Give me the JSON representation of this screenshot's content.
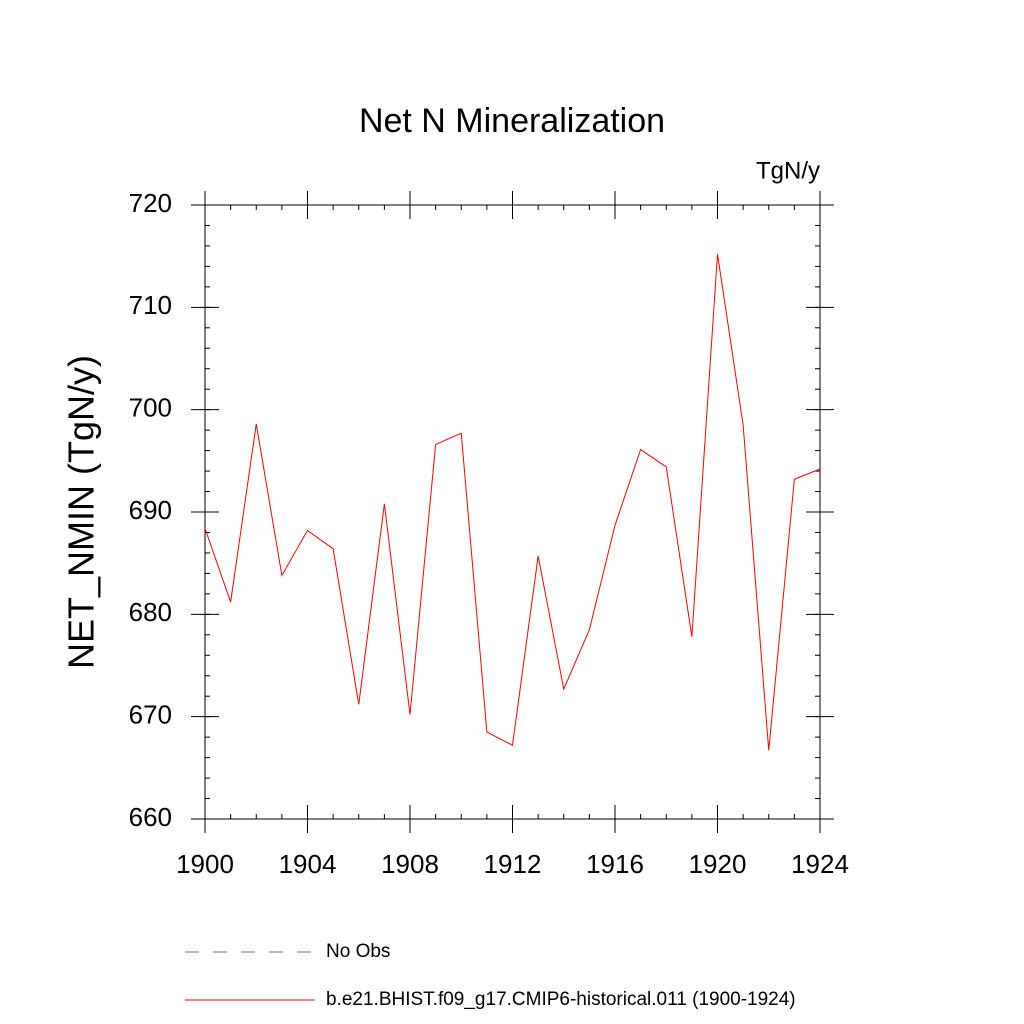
{
  "chart_data": {
    "type": "line",
    "title": "Net N Mineralization",
    "units": "TgN/y",
    "y_label": "NET_NMIN  (TgN/y)",
    "x": [
      1900,
      1901,
      1902,
      1903,
      1904,
      1905,
      1906,
      1907,
      1908,
      1909,
      1910,
      1911,
      1912,
      1913,
      1914,
      1915,
      1916,
      1917,
      1918,
      1919,
      1920,
      1921,
      1922,
      1923,
      1924
    ],
    "series": [
      {
        "name": "No Obs",
        "color": "#6a6ac8",
        "dash": true,
        "values": [
          null,
          null,
          null,
          null,
          null,
          null,
          null,
          null,
          null,
          null,
          null,
          null,
          null,
          null,
          null,
          null,
          null,
          null,
          null,
          null,
          null,
          null,
          null,
          null,
          null
        ]
      },
      {
        "name": "b.e21.BHIST.f09_g17.CMIP6-historical.011 (1900-1924)",
        "color": "#ff0000",
        "dash": false,
        "values": [
          688.4,
          681.2,
          698.6,
          683.8,
          688.2,
          686.4,
          671.2,
          690.8,
          670.2,
          696.6,
          697.7,
          668.5,
          667.2,
          685.7,
          672.7,
          678.5,
          688.7,
          696.1,
          694.4,
          677.8,
          715.2,
          698.5,
          666.7,
          693.2,
          694.2
        ]
      }
    ],
    "xlim": [
      1900,
      1924
    ],
    "xticks": [
      1900,
      1904,
      1908,
      1912,
      1916,
      1920,
      1924
    ],
    "ylim": [
      660,
      720
    ],
    "yticks": [
      660,
      670,
      680,
      690,
      700,
      710,
      720
    ]
  }
}
